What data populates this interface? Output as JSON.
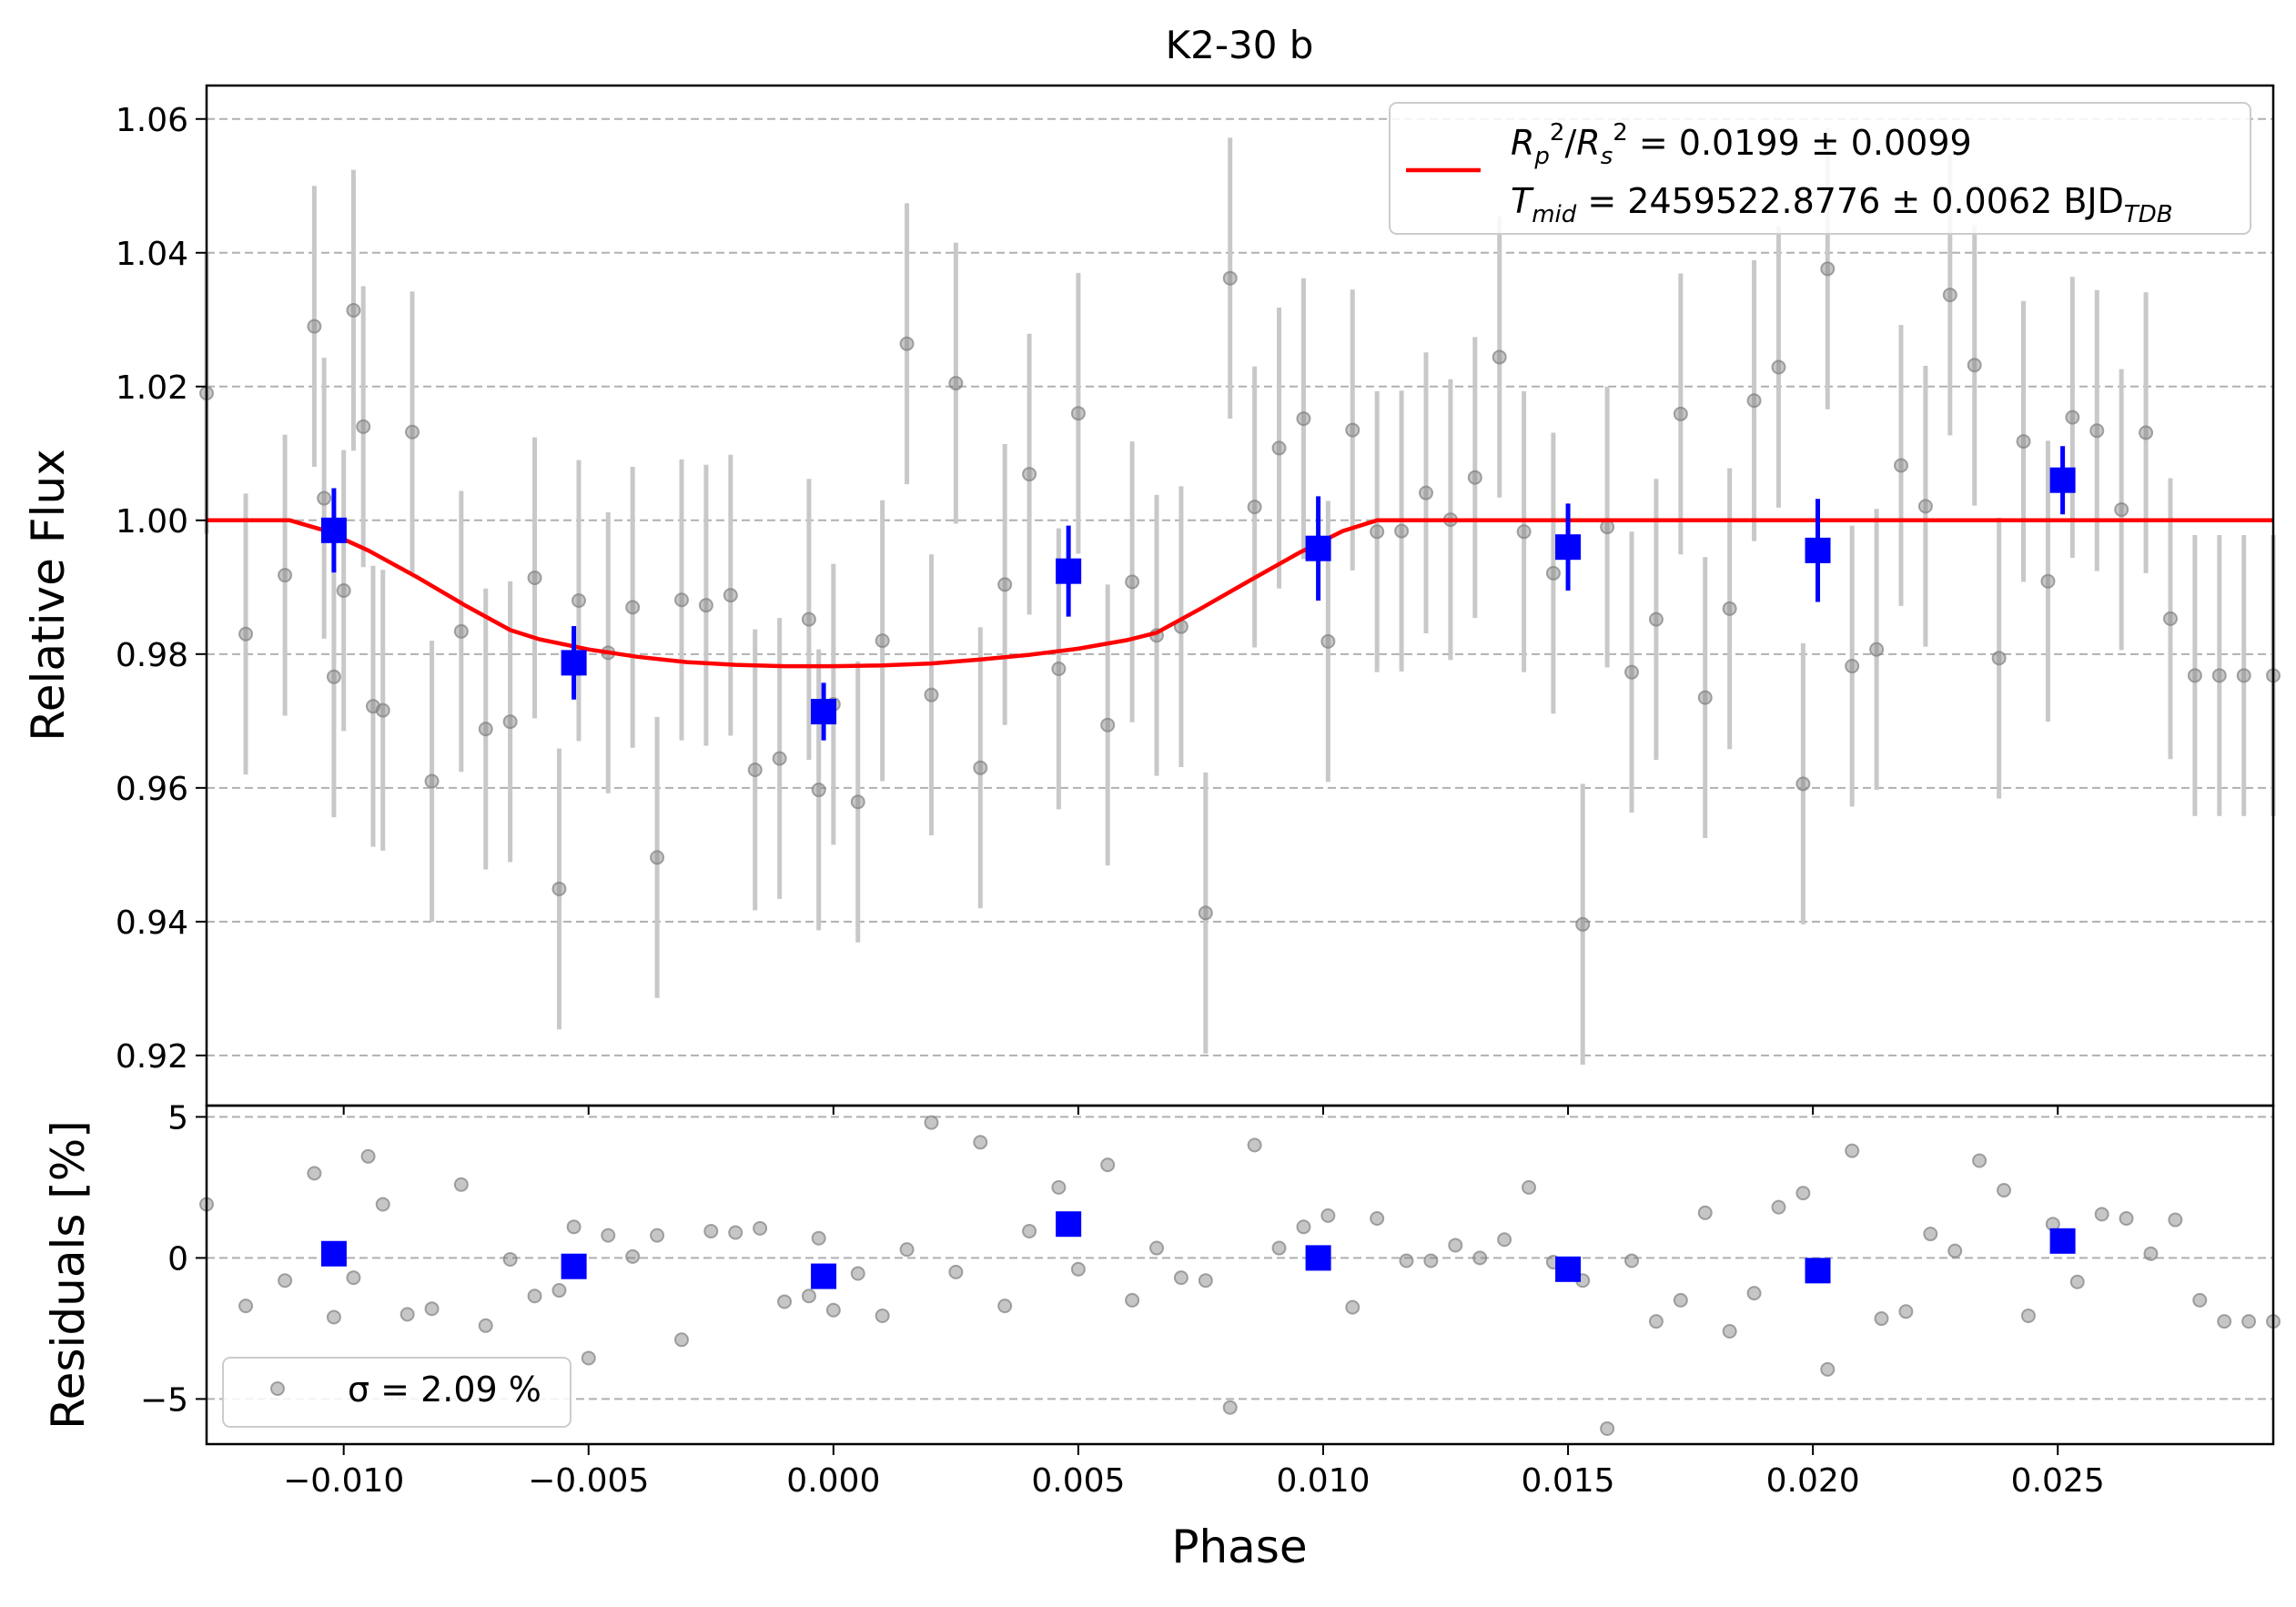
{
  "chart_data": [
    {
      "type": "scatter",
      "panel": "main",
      "title": "K2-30 b",
      "xlabel": "",
      "ylabel": "Relative Flux",
      "xlim": [
        -0.0128,
        0.0294
      ],
      "ylim": [
        0.9125,
        1.065
      ],
      "yticks": [
        "0.92",
        "0.94",
        "0.96",
        "0.98",
        "1.00",
        "1.02",
        "1.04",
        "1.06"
      ],
      "grid": "horizontal dashed",
      "legend": {
        "position": "top-right",
        "entries": [
          {
            "label_lines": [
              "R_p^2/R_s^2 = 0.0199 ± 0.0099",
              "T_mid = 2459522.8776 ± 0.0062 BJD_TDB"
            ],
            "color": "#ff0000"
          }
        ]
      },
      "model": {
        "name": "transit model",
        "color": "#ff0000",
        "x": [
          -0.0128,
          -0.0111,
          -0.0104,
          -0.0095,
          -0.0085,
          -0.0075,
          -0.0066,
          -0.006,
          -0.005,
          -0.004,
          -0.003,
          -0.002,
          -0.001,
          0.0,
          0.001,
          0.002,
          0.003,
          0.004,
          0.005,
          0.006,
          0.0066,
          0.0075,
          0.0085,
          0.0095,
          0.0104,
          0.0111,
          0.0294
        ],
        "y": [
          1.0,
          1.0,
          0.9985,
          0.9955,
          0.9915,
          0.9872,
          0.9836,
          0.9822,
          0.9807,
          0.9796,
          0.9788,
          0.9784,
          0.9782,
          0.9782,
          0.9783,
          0.9786,
          0.9792,
          0.9799,
          0.9808,
          0.9821,
          0.9832,
          0.9868,
          0.991,
          0.9951,
          0.9984,
          1.0,
          1.0
        ]
      },
      "binned": {
        "name": "binned",
        "color": "#0000ff",
        "x": [
          -0.0102,
          -0.0053,
          -0.0002,
          0.0048,
          0.0099,
          0.015,
          0.0201,
          0.0251
        ],
        "y": [
          0.9985,
          0.9787,
          0.9714,
          0.9924,
          0.9958,
          0.996,
          0.9955,
          1.006
        ],
        "err": [
          0.0063,
          0.0055,
          0.0043,
          0.0068,
          0.0078,
          0.0065,
          0.0077,
          0.0051
        ]
      },
      "raw": {
        "name": "raw",
        "color": "#808080",
        "err": 0.021,
        "x": [
          -0.0128,
          -0.012,
          -0.0112,
          -0.0106,
          -0.0104,
          -0.0102,
          -0.01,
          -0.0098,
          -0.0096,
          -0.0094,
          -0.0092,
          -0.0086,
          -0.0082,
          -0.0076,
          -0.0071,
          -0.0066,
          -0.0061,
          -0.0056,
          -0.0052,
          -0.0046,
          -0.0041,
          -0.0036,
          -0.0031,
          -0.0026,
          -0.0021,
          -0.0016,
          -0.0011,
          -0.0005,
          -0.0003,
          0.0,
          0.0005,
          0.001,
          0.0015,
          0.002,
          0.0025,
          0.003,
          0.0035,
          0.004,
          0.0046,
          0.005,
          0.0056,
          0.0061,
          0.0066,
          0.0071,
          0.0076,
          0.0081,
          0.0086,
          0.0091,
          0.0096,
          0.0101,
          0.0106,
          0.0111,
          0.0116,
          0.0121,
          0.0126,
          0.0131,
          0.0136,
          0.0141,
          0.0147,
          0.0153,
          0.0158,
          0.0163,
          0.0168,
          0.0173,
          0.0178,
          0.0183,
          0.0188,
          0.0193,
          0.0198,
          0.0203,
          0.0208,
          0.0213,
          0.0218,
          0.0223,
          0.0228,
          0.0233,
          0.0238,
          0.0243,
          0.0248,
          0.0253,
          0.0258,
          0.0263,
          0.0268,
          0.0273,
          0.0278,
          0.0283,
          0.0288,
          0.0294
        ],
        "y": [
          1.019,
          0.983,
          0.9918,
          1.029,
          1.0033,
          0.9766,
          0.9895,
          1.0314,
          1.014,
          0.9722,
          0.9716,
          1.0132,
          0.961,
          0.9834,
          0.9688,
          0.9699,
          0.9914,
          0.9449,
          0.988,
          0.9802,
          0.987,
          0.9496,
          0.9881,
          0.9873,
          0.9888,
          0.9627,
          0.9644,
          0.9852,
          0.9597,
          0.9725,
          0.9579,
          0.982,
          1.0264,
          0.9739,
          1.0205,
          0.963,
          0.9904,
          1.0069,
          0.9778,
          1.016,
          0.9694,
          0.9908,
          0.9828,
          0.9841,
          0.9413,
          1.0362,
          1.002,
          1.0108,
          1.0152,
          0.9819,
          1.0135,
          0.9983,
          0.9984,
          1.0041,
          1.0001,
          1.0064,
          1.0244,
          0.9983,
          0.9921,
          0.9396,
          0.999,
          0.9773,
          0.9852,
          1.0159,
          0.9735,
          0.9868,
          1.0179,
          1.0229,
          0.9606,
          1.0376,
          0.9782,
          0.9807,
          1.0082,
          1.0021,
          1.0337,
          1.0232,
          0.9794,
          1.0118,
          0.9909,
          1.0154,
          1.0134,
          1.0016,
          1.0131,
          0.9853,
          0.9768,
          0.9768,
          0.9768,
          0.9768
        ]
      }
    },
    {
      "type": "scatter",
      "panel": "residuals",
      "title": "",
      "xlabel": "Phase",
      "ylabel": "Residuals [%]",
      "xlim": [
        -0.0128,
        0.0294
      ],
      "ylim": [
        -6.6,
        5.4
      ],
      "xticks": [
        "−0.010",
        "−0.005",
        "0.000",
        "0.005",
        "0.010",
        "0.015",
        "0.020",
        "0.025"
      ],
      "yticks": [
        "−5",
        "0",
        "5"
      ],
      "grid": "horizontal dashed",
      "legend": {
        "position": "bottom-left",
        "entries": [
          {
            "label": "σ = 2.09 %",
            "color": "#808080"
          }
        ]
      },
      "binned": {
        "x": [
          -0.0102,
          -0.0053,
          -0.0002,
          0.0048,
          0.0099,
          0.015,
          0.0201,
          0.0251
        ],
        "y": [
          0.15,
          -0.3,
          -0.65,
          1.2,
          0.0,
          -0.4,
          -0.45,
          0.6
        ]
      },
      "raw": {
        "x": [
          -0.0128,
          -0.012,
          -0.0112,
          -0.0106,
          -0.0102,
          -0.0098,
          -0.0095,
          -0.0092,
          -0.0087,
          -0.0082,
          -0.0076,
          -0.0071,
          -0.0066,
          -0.0061,
          -0.0056,
          -0.0053,
          -0.005,
          -0.0046,
          -0.0041,
          -0.0036,
          -0.0031,
          -0.0025,
          -0.002,
          -0.0015,
          -0.001,
          -0.0005,
          -0.0003,
          0.0,
          0.0005,
          0.001,
          0.0015,
          0.002,
          0.0025,
          0.003,
          0.0035,
          0.004,
          0.0046,
          0.005,
          0.0056,
          0.0061,
          0.0066,
          0.0071,
          0.0076,
          0.0081,
          0.0086,
          0.0091,
          0.0096,
          0.0101,
          0.0106,
          0.0111,
          0.0117,
          0.0122,
          0.0127,
          0.0132,
          0.0137,
          0.0142,
          0.0147,
          0.0153,
          0.0158,
          0.0163,
          0.0168,
          0.0173,
          0.0178,
          0.0183,
          0.0188,
          0.0193,
          0.0198,
          0.0203,
          0.0208,
          0.0214,
          0.0219,
          0.0224,
          0.0229,
          0.0234,
          0.0239,
          0.0244,
          0.0249,
          0.0254,
          0.0259,
          0.0264,
          0.0269,
          0.0274,
          0.0279,
          0.0284,
          0.0289,
          0.0294
        ],
        "y": [
          1.9,
          -1.7,
          -0.8,
          3.0,
          -2.1,
          -0.7,
          3.6,
          1.9,
          -2.0,
          -1.8,
          2.6,
          -2.4,
          -0.05,
          -1.35,
          -1.15,
          1.1,
          -3.55,
          0.8,
          0.05,
          0.8,
          -2.9,
          0.95,
          0.9,
          1.05,
          -1.55,
          -1.35,
          0.7,
          -1.85,
          -0.55,
          -2.05,
          0.3,
          4.8,
          -0.5,
          4.1,
          -1.7,
          0.95,
          2.5,
          -0.4,
          3.3,
          -1.5,
          0.35,
          -0.7,
          -0.8,
          -5.3,
          4.0,
          0.35,
          1.1,
          1.5,
          -1.75,
          1.4,
          -0.1,
          -0.1,
          0.45,
          0.0,
          0.65,
          2.5,
          -0.15,
          -0.8,
          -6.05,
          -0.1,
          -2.25,
          -1.5,
          1.6,
          -2.6,
          -1.25,
          1.8,
          2.3,
          -3.95,
          3.8,
          -2.15,
          -1.9,
          0.85,
          0.25,
          3.45,
          2.4,
          -2.05,
          1.2,
          -0.85,
          1.55,
          1.4,
          0.15,
          1.35,
          -1.5,
          -2.25,
          -2.25,
          -2.25
        ]
      }
    }
  ]
}
